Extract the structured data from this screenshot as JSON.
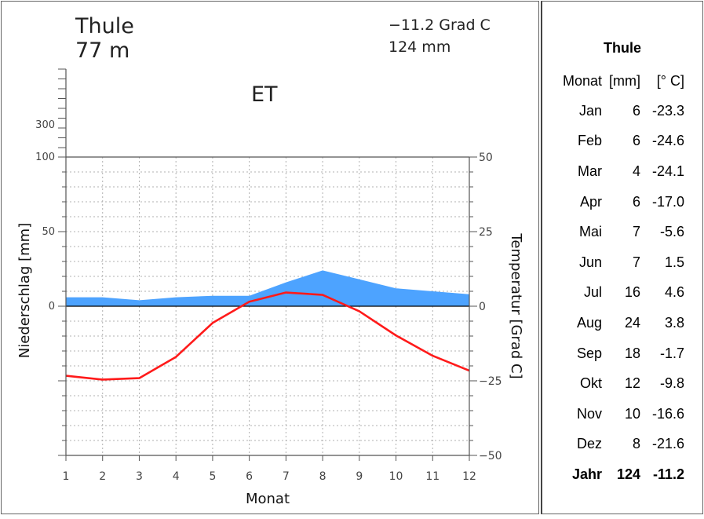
{
  "chart_data": {
    "type": "climate-diagram",
    "station": "Thule",
    "elevation": "77 m",
    "annual_temperature": "−11.2 Grad C",
    "annual_precipitation": "124 mm",
    "climate_class": "ET",
    "xlabel": "Monat",
    "ylabel_left": "Niederschlag [mm]",
    "ylabel_right": "Temperatur [Grad C]",
    "x": [
      1,
      2,
      3,
      4,
      5,
      6,
      7,
      8,
      9,
      10,
      11,
      12
    ],
    "x_tick_labels": [
      "1",
      "2",
      "3",
      "4",
      "5",
      "6",
      "7",
      "8",
      "9",
      "10",
      "11",
      "12"
    ],
    "left_tick_labels": [
      "300",
      "100",
      "50",
      "0"
    ],
    "right_tick_labels": [
      "50",
      "25",
      "0",
      "−25",
      "−50"
    ],
    "series": [
      {
        "name": "Niederschlag",
        "kind": "area",
        "color": "#4da3ff",
        "values": [
          6,
          6,
          4,
          6,
          7,
          7,
          16,
          24,
          18,
          12,
          10,
          8
        ]
      },
      {
        "name": "Temperatur",
        "kind": "line",
        "color": "#ff1a1a",
        "values": [
          -23.3,
          -24.6,
          -24.1,
          -17.0,
          -5.6,
          1.5,
          4.6,
          3.8,
          -1.7,
          -9.8,
          -16.6,
          -21.6
        ]
      }
    ],
    "precip_ylim": [
      -100,
      100
    ],
    "temp_ylim": [
      -50,
      50
    ],
    "grid": true
  },
  "table": {
    "title": "Thule",
    "headers": [
      "Monat",
      "[mm]",
      "[° C]"
    ],
    "rows": [
      {
        "month": "Jan",
        "mm": "6",
        "temp": "-23.3"
      },
      {
        "month": "Feb",
        "mm": "6",
        "temp": "-24.6"
      },
      {
        "month": "Mar",
        "mm": "4",
        "temp": "-24.1"
      },
      {
        "month": "Apr",
        "mm": "6",
        "temp": "-17.0"
      },
      {
        "month": "Mai",
        "mm": "7",
        "temp": "-5.6"
      },
      {
        "month": "Jun",
        "mm": "7",
        "temp": "1.5"
      },
      {
        "month": "Jul",
        "mm": "16",
        "temp": "4.6"
      },
      {
        "month": "Aug",
        "mm": "24",
        "temp": "3.8"
      },
      {
        "month": "Sep",
        "mm": "18",
        "temp": "-1.7"
      },
      {
        "month": "Okt",
        "mm": "12",
        "temp": "-9.8"
      },
      {
        "month": "Nov",
        "mm": "10",
        "temp": "-16.6"
      },
      {
        "month": "Dez",
        "mm": "8",
        "temp": "-21.6"
      }
    ],
    "total": {
      "month": "Jahr",
      "mm": "124",
      "temp": "-11.2"
    }
  }
}
